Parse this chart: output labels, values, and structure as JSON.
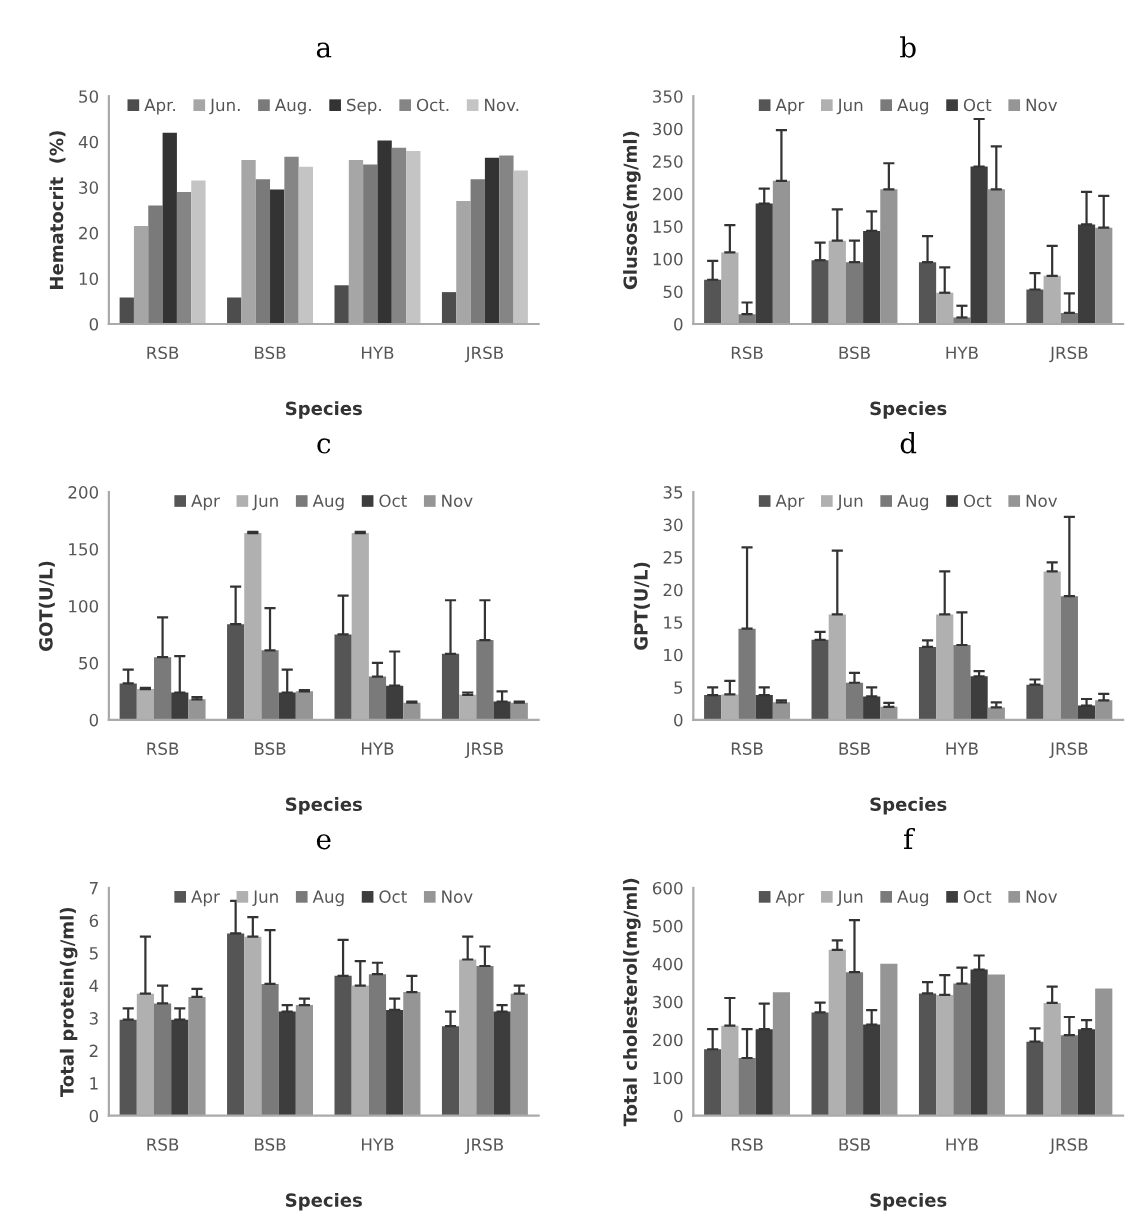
{
  "chart_data": [
    {
      "type": "bar",
      "title": "a",
      "xlabel": "Species",
      "ylabel": "Hematocrit  (%)",
      "categories": [
        "RSB",
        "BSB",
        "HYB",
        "JRSB"
      ],
      "ylim": [
        0,
        50
      ],
      "yticks": [
        0,
        10,
        20,
        30,
        40,
        50
      ],
      "legend": "top",
      "series": [
        {
          "name": "Apr.",
          "color": "#4d4d4d",
          "values": [
            5.8,
            5.8,
            8.5,
            7
          ]
        },
        {
          "name": "Jun.",
          "color": "#a6a6a6",
          "values": [
            21.5,
            36,
            36,
            27
          ]
        },
        {
          "name": "Aug.",
          "color": "#7a7a7a",
          "values": [
            26,
            31.8,
            35,
            31.8
          ]
        },
        {
          "name": "Sep.",
          "color": "#333333",
          "values": [
            42,
            29.5,
            40.3,
            36.5
          ]
        },
        {
          "name": "Oct.",
          "color": "#858585",
          "values": [
            29,
            36.7,
            38.7,
            37
          ]
        },
        {
          "name": "Nov.",
          "color": "#c4c4c4",
          "values": [
            31.5,
            34.5,
            38,
            33.7
          ]
        }
      ]
    },
    {
      "type": "bar",
      "title": "b",
      "xlabel": "Species",
      "ylabel": "Glusose(mg/ml)",
      "categories": [
        "RSB",
        "BSB",
        "HYB",
        "JRSB"
      ],
      "ylim": [
        0,
        350
      ],
      "yticks": [
        0,
        50,
        100,
        150,
        200,
        250,
        300,
        350
      ],
      "legend": "top",
      "series": [
        {
          "name": "Apr",
          "color": "#555555",
          "values": [
            68,
            98,
            95,
            53
          ],
          "errors": [
            [
              68,
              97
            ],
            [
              98,
              125
            ],
            [
              95,
              135
            ],
            [
              53,
              78
            ]
          ]
        },
        {
          "name": "Jun",
          "color": "#b0b0b0",
          "values": [
            110,
            128,
            48,
            74
          ],
          "errors": [
            [
              110,
              152
            ],
            [
              128,
              176
            ],
            [
              48,
              87
            ],
            [
              74,
              120
            ]
          ]
        },
        {
          "name": "Aug",
          "color": "#7a7a7a",
          "values": [
            15,
            95,
            10,
            17
          ],
          "errors": [
            [
              15,
              33
            ],
            [
              95,
              128
            ],
            [
              10,
              28
            ],
            [
              17,
              47
            ]
          ]
        },
        {
          "name": "Oct",
          "color": "#3d3d3d",
          "values": [
            185,
            143,
            242,
            153
          ],
          "errors": [
            [
              185,
              208
            ],
            [
              143,
              173
            ],
            [
              242,
              315
            ],
            [
              153,
              203
            ]
          ]
        },
        {
          "name": "Nov",
          "color": "#959595",
          "values": [
            220,
            207,
            207,
            148
          ],
          "errors": [
            [
              220,
              298
            ],
            [
              207,
              247
            ],
            [
              207,
              273
            ],
            [
              148,
              197
            ]
          ]
        }
      ]
    },
    {
      "type": "bar",
      "title": "c",
      "xlabel": "Species",
      "ylabel": "GOT(U/L)",
      "categories": [
        "RSB",
        "BSB",
        "HYB",
        "JRSB"
      ],
      "ylim": [
        0,
        200
      ],
      "yticks": [
        0,
        50,
        100,
        150,
        200
      ],
      "legend": "top",
      "series": [
        {
          "name": "Apr",
          "color": "#555555",
          "values": [
            32,
            84,
            75,
            58
          ],
          "errors": [
            [
              32,
              44
            ],
            [
              84,
              117
            ],
            [
              75,
              109
            ],
            [
              58,
              105
            ]
          ]
        },
        {
          "name": "Jun",
          "color": "#b0b0b0",
          "values": [
            27,
            164,
            164,
            22
          ],
          "errors": [
            [
              27,
              28
            ],
            [
              164,
              165
            ],
            [
              164,
              165
            ],
            [
              22,
              24
            ]
          ]
        },
        {
          "name": "Aug",
          "color": "#7a7a7a",
          "values": [
            55,
            61,
            38,
            70
          ],
          "errors": [
            [
              55,
              90
            ],
            [
              61,
              98
            ],
            [
              38,
              50
            ],
            [
              70,
              105
            ]
          ]
        },
        {
          "name": "Oct",
          "color": "#3d3d3d",
          "values": [
            24,
            24,
            30,
            16
          ],
          "errors": [
            [
              24,
              56
            ],
            [
              24,
              44
            ],
            [
              30,
              60
            ],
            [
              16,
              25
            ]
          ]
        },
        {
          "name": "Nov",
          "color": "#959595",
          "values": [
            18,
            25,
            15,
            15
          ],
          "errors": [
            [
              18,
              20
            ],
            [
              25,
              26
            ],
            [
              15,
              16
            ],
            [
              15,
              16
            ]
          ]
        }
      ]
    },
    {
      "type": "bar",
      "title": "d",
      "xlabel": "Species",
      "ylabel": "GPT(U/L)",
      "categories": [
        "RSB",
        "BSB",
        "HYB",
        "JRSB"
      ],
      "ylim": [
        0,
        35
      ],
      "yticks": [
        0,
        5,
        10,
        15,
        20,
        25,
        30,
        35
      ],
      "legend": "top",
      "series": [
        {
          "name": "Apr",
          "color": "#555555",
          "values": [
            3.8,
            12.3,
            11.2,
            5.4
          ],
          "errors": [
            [
              3.8,
              5
            ],
            [
              12.3,
              13.5
            ],
            [
              11.2,
              12.2
            ],
            [
              5.4,
              6.2
            ]
          ]
        },
        {
          "name": "Jun",
          "color": "#b0b0b0",
          "values": [
            3.9,
            16.2,
            16.2,
            22.8
          ],
          "errors": [
            [
              3.9,
              6
            ],
            [
              16.2,
              26
            ],
            [
              16.2,
              22.8
            ],
            [
              22.8,
              24.2
            ]
          ]
        },
        {
          "name": "Aug",
          "color": "#7a7a7a",
          "values": [
            14,
            5.7,
            11.5,
            19
          ],
          "errors": [
            [
              14,
              26.5
            ],
            [
              5.7,
              7.2
            ],
            [
              11.5,
              16.5
            ],
            [
              19,
              31.2
            ]
          ]
        },
        {
          "name": "Oct",
          "color": "#3d3d3d",
          "values": [
            3.8,
            3.6,
            6.7,
            2.2
          ],
          "errors": [
            [
              3.8,
              5
            ],
            [
              3.6,
              5
            ],
            [
              6.7,
              7.5
            ],
            [
              2.2,
              3.2
            ]
          ]
        },
        {
          "name": "Nov",
          "color": "#959595",
          "values": [
            2.7,
            2,
            1.9,
            3
          ],
          "errors": [
            [
              2.7,
              3
            ],
            [
              2,
              2.6
            ],
            [
              1.9,
              2.7
            ],
            [
              3,
              4
            ]
          ]
        }
      ]
    },
    {
      "type": "bar",
      "title": "e",
      "xlabel": "Species",
      "ylabel": "Total protein(g/ml)",
      "categories": [
        "RSB",
        "BSB",
        "HYB",
        "JRSB"
      ],
      "ylim": [
        0,
        7
      ],
      "yticks": [
        0,
        1,
        2,
        3,
        4,
        5,
        6,
        7
      ],
      "legend": "top",
      "series": [
        {
          "name": "Apr",
          "color": "#555555",
          "values": [
            2.95,
            5.6,
            4.3,
            2.75
          ],
          "errors": [
            [
              2.95,
              3.3
            ],
            [
              5.6,
              6.6
            ],
            [
              4.3,
              5.4
            ],
            [
              2.75,
              3.2
            ]
          ]
        },
        {
          "name": "Jun",
          "color": "#b0b0b0",
          "values": [
            3.75,
            5.5,
            4.0,
            4.8
          ],
          "errors": [
            [
              3.75,
              5.5
            ],
            [
              5.5,
              6.1
            ],
            [
              4.0,
              4.75
            ],
            [
              4.8,
              5.5
            ]
          ]
        },
        {
          "name": "Aug",
          "color": "#7a7a7a",
          "values": [
            3.45,
            4.05,
            4.35,
            4.6
          ],
          "errors": [
            [
              3.45,
              4.0
            ],
            [
              4.05,
              5.7
            ],
            [
              4.35,
              4.7
            ],
            [
              4.6,
              5.2
            ]
          ]
        },
        {
          "name": "Oct",
          "color": "#3d3d3d",
          "values": [
            2.95,
            3.2,
            3.25,
            3.2
          ],
          "errors": [
            [
              2.95,
              3.3
            ],
            [
              3.2,
              3.4
            ],
            [
              3.25,
              3.6
            ],
            [
              3.2,
              3.4
            ]
          ]
        },
        {
          "name": "Nov",
          "color": "#959595",
          "values": [
            3.65,
            3.4,
            3.8,
            3.75
          ],
          "errors": [
            [
              3.65,
              3.9
            ],
            [
              3.4,
              3.6
            ],
            [
              3.8,
              4.3
            ],
            [
              3.75,
              4.0
            ]
          ]
        }
      ]
    },
    {
      "type": "bar",
      "title": "f",
      "xlabel": "Species",
      "ylabel": "Total cholesterol(mg/ml)",
      "categories": [
        "RSB",
        "BSB",
        "HYB",
        "JRSB"
      ],
      "ylim": [
        0,
        600
      ],
      "yticks": [
        0,
        100,
        200,
        300,
        400,
        500,
        600
      ],
      "legend": "top",
      "series": [
        {
          "name": "Apr",
          "color": "#555555",
          "values": [
            175,
            272,
            322,
            195
          ],
          "errors": [
            [
              175,
              228
            ],
            [
              272,
              298
            ],
            [
              322,
              352
            ],
            [
              195,
              230
            ]
          ]
        },
        {
          "name": "Jun",
          "color": "#b0b0b0",
          "values": [
            237,
            437,
            318,
            297
          ],
          "errors": [
            [
              237,
              310
            ],
            [
              437,
              462
            ],
            [
              318,
              370
            ],
            [
              297,
              340
            ]
          ]
        },
        {
          "name": "Aug",
          "color": "#7a7a7a",
          "values": [
            152,
            378,
            348,
            212
          ],
          "errors": [
            [
              152,
              228
            ],
            [
              378,
              515
            ],
            [
              348,
              390
            ],
            [
              212,
              260
            ]
          ]
        },
        {
          "name": "Oct",
          "color": "#3d3d3d",
          "values": [
            228,
            240,
            385,
            228
          ],
          "errors": [
            [
              228,
              295
            ],
            [
              240,
              278
            ],
            [
              385,
              422
            ],
            [
              228,
              252
            ]
          ]
        },
        {
          "name": "Nov",
          "color": "#959595",
          "values": [
            325,
            400,
            372,
            335
          ]
        }
      ]
    }
  ]
}
